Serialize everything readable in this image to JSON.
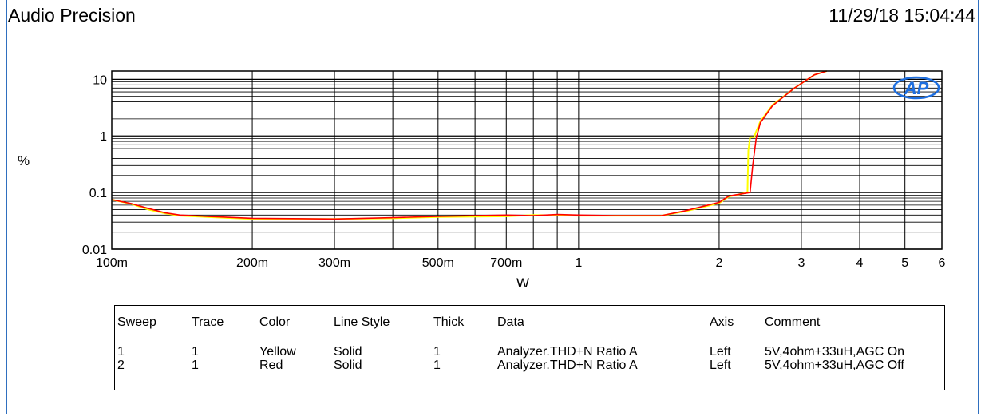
{
  "header": {
    "left": "Audio Precision",
    "right": "11/29/18 15:04:44"
  },
  "chart_data": {
    "type": "line",
    "xlabel": "W",
    "ylabel": "%",
    "xscale": "log",
    "yscale": "log",
    "xlim": [
      0.1,
      6
    ],
    "ylim": [
      0.01,
      14
    ],
    "grid": true,
    "logo": "AP",
    "x_ticks": [
      {
        "v": 0.1,
        "label": "100m"
      },
      {
        "v": 0.2,
        "label": "200m"
      },
      {
        "v": 0.3,
        "label": "300m"
      },
      {
        "v": 0.5,
        "label": "500m"
      },
      {
        "v": 0.7,
        "label": "700m"
      },
      {
        "v": 1,
        "label": "1"
      },
      {
        "v": 2,
        "label": "2"
      },
      {
        "v": 3,
        "label": "3"
      },
      {
        "v": 4,
        "label": "4"
      },
      {
        "v": 5,
        "label": "5"
      },
      {
        "v": 6,
        "label": "6"
      }
    ],
    "x_gridlines": [
      0.1,
      0.2,
      0.3,
      0.4,
      0.5,
      0.6,
      0.7,
      0.8,
      0.9,
      1,
      2,
      3,
      4,
      5,
      6
    ],
    "y_ticks": [
      {
        "v": 0.01,
        "label": "0.01"
      },
      {
        "v": 0.1,
        "label": "0.1"
      },
      {
        "v": 1,
        "label": "1"
      },
      {
        "v": 10,
        "label": "10"
      }
    ],
    "series": [
      {
        "color": "#ffff00",
        "values": [
          [
            0.1,
            0.075
          ],
          [
            0.11,
            0.063
          ],
          [
            0.12,
            0.05
          ],
          [
            0.13,
            0.043
          ],
          [
            0.14,
            0.039
          ],
          [
            0.16,
            0.037
          ],
          [
            0.2,
            0.034
          ],
          [
            0.3,
            0.034
          ],
          [
            0.4,
            0.035
          ],
          [
            0.5,
            0.037
          ],
          [
            0.7,
            0.038
          ],
          [
            0.8,
            0.04
          ],
          [
            1,
            0.039
          ],
          [
            1.2,
            0.039
          ],
          [
            1.5,
            0.039
          ],
          [
            1.7,
            0.047
          ],
          [
            2,
            0.065
          ],
          [
            2.1,
            0.085
          ],
          [
            2.3,
            0.1
          ],
          [
            2.31,
            0.55
          ],
          [
            2.33,
            0.95
          ],
          [
            2.38,
            0.95
          ],
          [
            2.39,
            1.1
          ],
          [
            2.45,
            1.8
          ],
          [
            2.6,
            3.5
          ],
          [
            2.9,
            7
          ],
          [
            3.2,
            12
          ],
          [
            3.4,
            14
          ]
        ]
      },
      {
        "color": "#ff0000",
        "values": [
          [
            0.1,
            0.075
          ],
          [
            0.11,
            0.064
          ],
          [
            0.12,
            0.052
          ],
          [
            0.13,
            0.044
          ],
          [
            0.14,
            0.04
          ],
          [
            0.16,
            0.038
          ],
          [
            0.2,
            0.035
          ],
          [
            0.3,
            0.034
          ],
          [
            0.4,
            0.036
          ],
          [
            0.5,
            0.038
          ],
          [
            0.7,
            0.04
          ],
          [
            0.8,
            0.039
          ],
          [
            0.9,
            0.041
          ],
          [
            1,
            0.04
          ],
          [
            1.2,
            0.039
          ],
          [
            1.5,
            0.039
          ],
          [
            1.7,
            0.048
          ],
          [
            2,
            0.067
          ],
          [
            2.1,
            0.087
          ],
          [
            2.33,
            0.1
          ],
          [
            2.36,
            0.3
          ],
          [
            2.4,
            0.9
          ],
          [
            2.45,
            1.7
          ],
          [
            2.6,
            3.4
          ],
          [
            2.9,
            7
          ],
          [
            3.2,
            12
          ],
          [
            3.4,
            14
          ]
        ]
      }
    ]
  },
  "legend": {
    "headers": [
      "Sweep",
      "Trace",
      "Color",
      "Line Style",
      "Thick",
      "Data",
      "Axis",
      "Comment"
    ],
    "rows": [
      [
        "1",
        "1",
        "Yellow",
        "Solid",
        "1",
        "Analyzer.THD+N Ratio A",
        "Left",
        "5V,4ohm+33uH,AGC On"
      ],
      [
        "2",
        "1",
        "Red",
        "Solid",
        "1",
        "Analyzer.THD+N Ratio A",
        "Left",
        "5V,4ohm+33uH,AGC Off"
      ]
    ]
  }
}
